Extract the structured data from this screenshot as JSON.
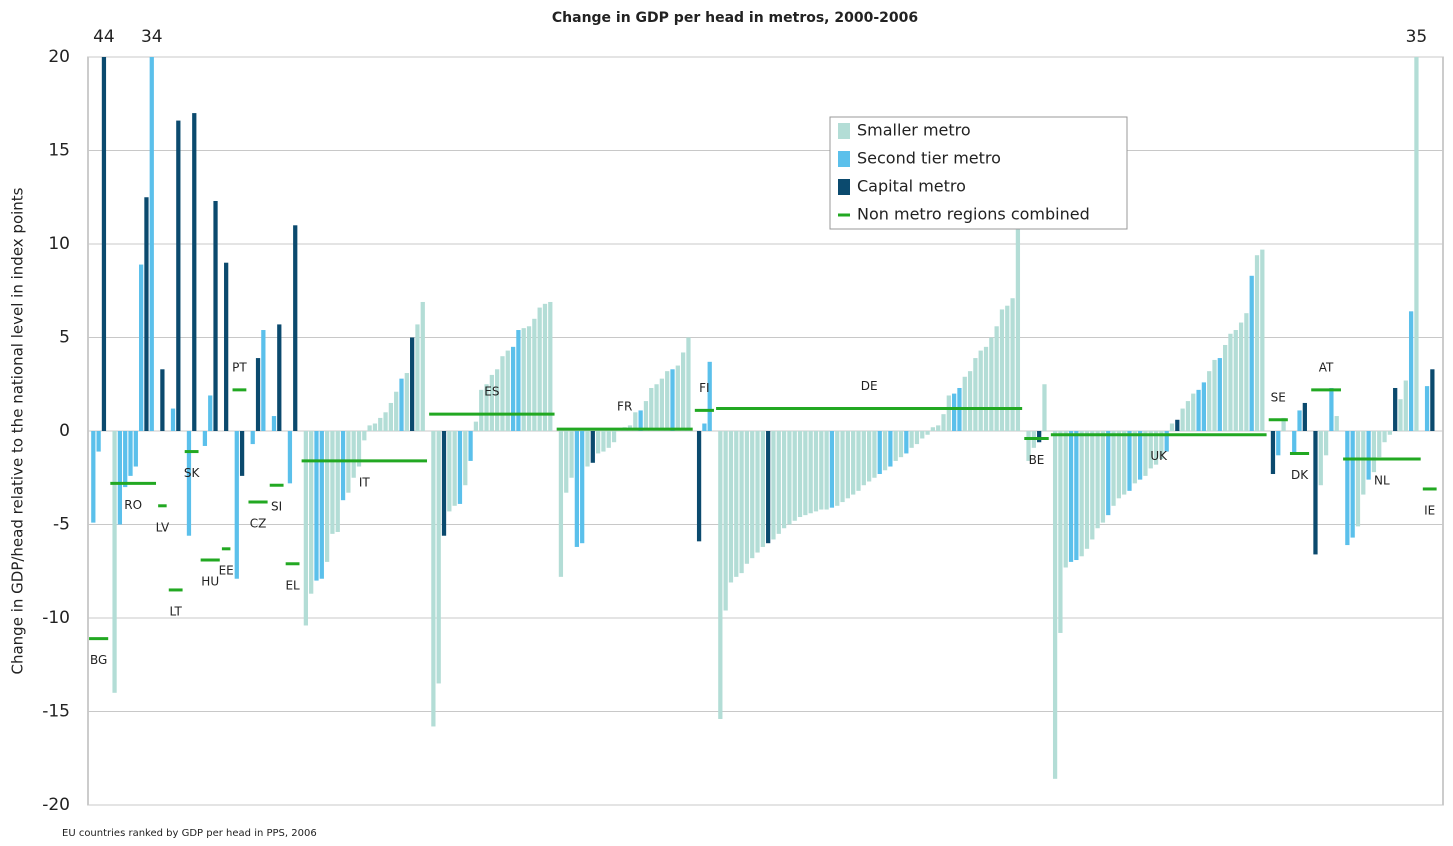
{
  "chart_data": {
    "type": "bar",
    "title": "Change in GDP per head in metros, 2000-2006",
    "y_label": "Change in GDP/head relative to the national level in index points",
    "x_label": "EU countries ranked by GDP per head in PPS, 2006",
    "ylim": [
      -20,
      20
    ],
    "yticks": [
      -20,
      -15,
      -10,
      -5,
      0,
      5,
      10,
      15,
      20
    ],
    "grid": true,
    "series": [
      {
        "name": "Smaller metro",
        "color": "#b3ddd6"
      },
      {
        "name": "Second tier metro",
        "color": "#5bc0eb"
      },
      {
        "name": "Capital metro",
        "color": "#0b4a6e"
      }
    ],
    "nonmetro": {
      "name": "Non metro regions combined",
      "color": "#22a822"
    },
    "groups": [
      {
        "label": "BG",
        "nonmetro": -11.1,
        "kinds": [
          1,
          1,
          2
        ],
        "values": [
          -4.9,
          -1.1,
          44
        ],
        "value_labels": [
          null,
          null,
          "44"
        ]
      },
      {
        "label": "RO",
        "nonmetro": -2.8,
        "kinds": [
          0,
          1,
          1,
          1,
          1,
          1,
          2,
          1
        ],
        "values": [
          -14,
          -5,
          -3,
          -2.4,
          -1.9,
          8.9,
          12.5,
          34
        ],
        "value_labels": [
          null,
          null,
          null,
          null,
          null,
          null,
          null,
          "34"
        ]
      },
      {
        "label": "LV",
        "nonmetro": -4,
        "kinds": [
          2
        ],
        "values": [
          3.3
        ]
      },
      {
        "label": "LT",
        "nonmetro": -8.5,
        "kinds": [
          1,
          2
        ],
        "values": [
          1.2,
          16.6
        ]
      },
      {
        "label": "SK",
        "nonmetro": -1.1,
        "kinds": [
          1,
          2
        ],
        "values": [
          -5.6,
          17
        ]
      },
      {
        "label": "HU",
        "nonmetro": -6.9,
        "kinds": [
          1,
          1,
          2
        ],
        "values": [
          -0.8,
          1.9,
          12.3
        ]
      },
      {
        "label": "EE",
        "nonmetro": -6.3,
        "kinds": [
          2
        ],
        "values": [
          9
        ]
      },
      {
        "label": "PT",
        "nonmetro": 2.2,
        "kinds": [
          1,
          2
        ],
        "values": [
          -7.9,
          -2.4
        ]
      },
      {
        "label": "CZ",
        "nonmetro": -3.8,
        "kinds": [
          1,
          2,
          1
        ],
        "values": [
          -0.7,
          3.9,
          5.4
        ]
      },
      {
        "label": "SI",
        "nonmetro": -2.9,
        "kinds": [
          1,
          2
        ],
        "values": [
          0.8,
          5.7
        ]
      },
      {
        "label": "EL",
        "nonmetro": -7.1,
        "kinds": [
          1,
          2
        ],
        "values": [
          -2.8,
          11
        ]
      },
      {
        "label": "IT",
        "nonmetro": -1.6,
        "kinds": [
          0,
          0,
          1,
          1,
          0,
          0,
          0,
          1,
          0,
          0,
          0,
          0,
          0,
          0,
          0,
          0,
          0,
          0,
          1,
          0,
          2,
          0,
          0
        ],
        "values": [
          -10.4,
          -8.7,
          -8,
          -7.9,
          -7,
          -5.5,
          -5.4,
          -3.7,
          -3.3,
          -2.5,
          -1.9,
          -0.5,
          0.3,
          0.4,
          0.7,
          1,
          1.5,
          2.1,
          2.8,
          3.1,
          5,
          5.7,
          6.9
        ]
      },
      {
        "label": "ES",
        "nonmetro": 0.9,
        "kinds": [
          0,
          0,
          2,
          0,
          0,
          1,
          0,
          1,
          0,
          0,
          0,
          0,
          0,
          0,
          0,
          1,
          1,
          0,
          0,
          0,
          0,
          0,
          0
        ],
        "values": [
          -15.8,
          -13.5,
          -5.6,
          -4.3,
          -4,
          -3.9,
          -2.9,
          -1.6,
          0.5,
          2.2,
          2.5,
          3,
          3.3,
          4,
          4.3,
          4.5,
          5.4,
          5.5,
          5.6,
          6,
          6.6,
          6.8,
          6.9
        ]
      },
      {
        "label": "FR",
        "nonmetro": 0.1,
        "kinds": [
          0,
          0,
          0,
          1,
          1,
          0,
          2,
          0,
          0,
          0,
          0,
          0,
          0,
          0,
          0,
          1,
          0,
          0,
          0,
          0,
          0,
          1,
          0,
          0,
          0
        ],
        "values": [
          -7.8,
          -3.3,
          -2.5,
          -6.2,
          -6,
          -1.9,
          -1.7,
          -1.2,
          -1.1,
          -0.9,
          -0.6,
          0.1,
          0.2,
          0.3,
          1,
          1.1,
          1.6,
          2.3,
          2.5,
          2.8,
          3.2,
          3.3,
          3.5,
          4.2,
          5
        ]
      },
      {
        "label": "FI",
        "nonmetro": 1.1,
        "kinds": [
          2,
          1,
          1
        ],
        "values": [
          -5.9,
          0.4,
          3.7
        ]
      },
      {
        "label": "DE",
        "nonmetro": 1.2,
        "kinds": [
          0,
          0,
          0,
          0,
          0,
          0,
          0,
          0,
          0,
          2,
          0,
          0,
          0,
          0,
          0,
          0,
          0,
          0,
          0,
          0,
          0,
          1,
          0,
          0,
          0,
          0,
          0,
          0,
          0,
          0,
          1,
          0,
          1,
          0,
          0,
          1,
          0,
          0,
          0,
          0,
          0,
          0,
          0,
          0,
          1,
          1,
          0,
          0,
          0,
          0,
          0,
          0,
          0,
          0,
          0,
          0,
          0
        ],
        "values": [
          -15.4,
          -9.6,
          -8.1,
          -7.8,
          -7.6,
          -7.1,
          -6.8,
          -6.5,
          -6.2,
          -6,
          -5.8,
          -5.5,
          -5.2,
          -5,
          -4.8,
          -4.6,
          -4.5,
          -4.4,
          -4.3,
          -4.2,
          -4.2,
          -4.1,
          -4,
          -3.8,
          -3.6,
          -3.4,
          -3.2,
          -2.9,
          -2.7,
          -2.5,
          -2.3,
          -2.1,
          -1.9,
          -1.6,
          -1.4,
          -1.2,
          -0.9,
          -0.7,
          -0.4,
          -0.2,
          0.2,
          0.3,
          0.9,
          1.9,
          2,
          2.3,
          2.9,
          3.2,
          3.9,
          4.3,
          4.5,
          5,
          5.6,
          6.5,
          6.7,
          7.1,
          10.8
        ]
      },
      {
        "label": "BE",
        "nonmetro": -0.4,
        "kinds": [
          0,
          0,
          2,
          0
        ],
        "values": [
          -1.6,
          -0.9,
          -0.6,
          2.5
        ]
      },
      {
        "label": "UK",
        "nonmetro": -0.2,
        "kinds": [
          0,
          0,
          0,
          1,
          1,
          0,
          0,
          0,
          0,
          0,
          1,
          0,
          0,
          0,
          1,
          0,
          1,
          0,
          0,
          0,
          0,
          1,
          0,
          2,
          0,
          0,
          0,
          1,
          1,
          0,
          0,
          1,
          0,
          0,
          0,
          0,
          0,
          1,
          0,
          0
        ],
        "values": [
          -18.6,
          -10.8,
          -7.3,
          -7,
          -6.9,
          -6.7,
          -6.3,
          -5.8,
          -5.2,
          -4.9,
          -4.5,
          -4,
          -3.6,
          -3.4,
          -3.2,
          -2.8,
          -2.6,
          -2.4,
          -2,
          -1.8,
          -1.5,
          -1.1,
          0.4,
          0.6,
          1.2,
          1.6,
          2,
          2.2,
          2.6,
          3.2,
          3.8,
          3.9,
          4.6,
          5.2,
          5.4,
          5.8,
          6.3,
          8.3,
          9.4,
          9.7
        ]
      },
      {
        "label": "SE",
        "nonmetro": 0.6,
        "kinds": [
          2,
          1,
          0
        ],
        "values": [
          -2.3,
          -1.3,
          0.7
        ]
      },
      {
        "label": "DK",
        "nonmetro": -1.2,
        "kinds": [
          1,
          1,
          2
        ],
        "values": [
          -1.2,
          1.1,
          1.5
        ]
      },
      {
        "label": "AT",
        "nonmetro": 2.2,
        "kinds": [
          2,
          0,
          0,
          1,
          0
        ],
        "values": [
          -6.6,
          -2.9,
          -1.3,
          2.3,
          0.8
        ]
      },
      {
        "label": "NL",
        "nonmetro": -1.5,
        "kinds": [
          1,
          1,
          0,
          0,
          1,
          0,
          0,
          0,
          0,
          2,
          0,
          0,
          1,
          0
        ],
        "values": [
          -6.1,
          -5.7,
          -5.1,
          -3.4,
          -2.6,
          -2.2,
          -1.4,
          -0.6,
          -0.2,
          2.3,
          1.7,
          2.7,
          6.4,
          35
        ],
        "value_labels": [
          null,
          null,
          null,
          null,
          null,
          null,
          null,
          null,
          null,
          null,
          null,
          null,
          null,
          "35"
        ]
      },
      {
        "label": "IE",
        "nonmetro": -3.1,
        "kinds": [
          1,
          2
        ],
        "values": [
          2.4,
          3.3
        ]
      }
    ]
  }
}
